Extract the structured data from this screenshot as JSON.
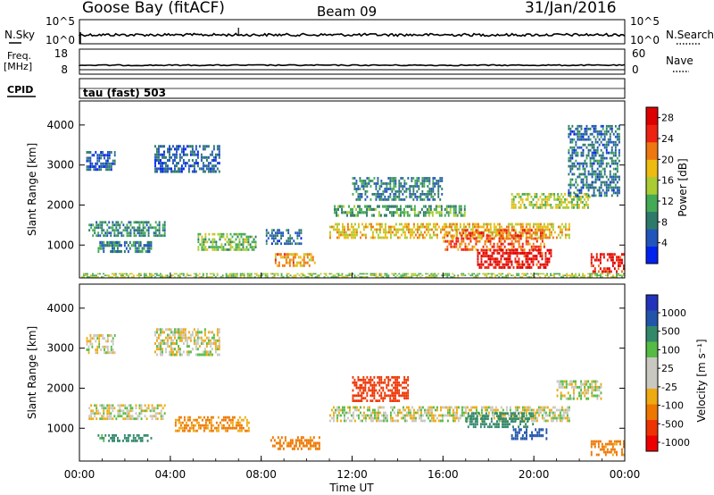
{
  "header": {
    "site": "Goose Bay (fitACF)",
    "beam": "Beam 09",
    "date": "31/Jan/2016"
  },
  "strips": {
    "nsky_label": "N.Sky",
    "nsearch_label": "N.Search",
    "nsky_ticks": [
      "10^5",
      "10^0"
    ],
    "nsearch_ticks": [
      "10^5",
      "10^0"
    ],
    "freq_label_1": "Freq.",
    "freq_label_2": "[MHz]",
    "freq_ticks": [
      "18",
      "8"
    ],
    "nave_label": "Nave",
    "nave_ticks": [
      "60",
      "0"
    ],
    "cpid_label": "CPID",
    "cpid_value": "tau (fast) 503"
  },
  "colors": {
    "power_scale": [
      "#0022ee",
      "#2255bb",
      "#2e7a6a",
      "#44aa55",
      "#aacc33",
      "#eebb11",
      "#ee7711",
      "#ee2211",
      "#dd0000"
    ],
    "velocity_scale": [
      "#ee0000",
      "#ee3300",
      "#ee7700",
      "#eeaa11",
      "#c8c8c0",
      "#c8c8c0",
      "#55bb44",
      "#33886a",
      "#2255aa",
      "#2233bb"
    ]
  },
  "chart_data": [
    {
      "type": "heatmap",
      "name": "power",
      "ylabel": "Slant Range [km]",
      "xlabel": "Time UT",
      "x_ticks": [
        "00:00",
        "04:00",
        "08:00",
        "12:00",
        "16:00",
        "20:00",
        "00:00"
      ],
      "xlim_hours": [
        0,
        24
      ],
      "ylim_km": [
        180,
        4600
      ],
      "y_ticks": [
        1000,
        2000,
        3000,
        4000
      ],
      "colorbar_label": "Power [dB]",
      "colorbar_ticks": [
        4,
        8,
        12,
        16,
        20,
        24,
        28
      ],
      "colorbar_range": [
        0,
        30
      ],
      "echo_regions": [
        {
          "t": [
            0.0,
            24.0
          ],
          "r": [
            180,
            300
          ],
          "level": 14
        },
        {
          "t": [
            0.3,
            1.6
          ],
          "r": [
            2850,
            3350
          ],
          "level": 6
        },
        {
          "t": [
            0.4,
            3.8
          ],
          "r": [
            1200,
            1600
          ],
          "level": 9
        },
        {
          "t": [
            0.8,
            3.2
          ],
          "r": [
            800,
            1100
          ],
          "level": 8
        },
        {
          "t": [
            3.3,
            6.2
          ],
          "r": [
            2800,
            3500
          ],
          "level": 6
        },
        {
          "t": [
            5.2,
            7.8
          ],
          "r": [
            850,
            1300
          ],
          "level": 13
        },
        {
          "t": [
            8.2,
            9.8
          ],
          "r": [
            1000,
            1400
          ],
          "level": 7
        },
        {
          "t": [
            8.6,
            10.4
          ],
          "r": [
            450,
            800
          ],
          "level": 20
        },
        {
          "t": [
            11.0,
            21.6
          ],
          "r": [
            1150,
            1550
          ],
          "level": 18
        },
        {
          "t": [
            11.2,
            17.0
          ],
          "r": [
            1700,
            2000
          ],
          "level": 11
        },
        {
          "t": [
            12.0,
            16.0
          ],
          "r": [
            2100,
            2700
          ],
          "level": 8
        },
        {
          "t": [
            16.0,
            20.5
          ],
          "r": [
            850,
            1400
          ],
          "level": 23
        },
        {
          "t": [
            17.5,
            20.8
          ],
          "r": [
            400,
            900
          ],
          "level": 27
        },
        {
          "t": [
            19.0,
            22.5
          ],
          "r": [
            1900,
            2300
          ],
          "level": 15
        },
        {
          "t": [
            21.5,
            23.8
          ],
          "r": [
            2200,
            4000
          ],
          "level": 7
        },
        {
          "t": [
            22.5,
            24.0
          ],
          "r": [
            300,
            800
          ],
          "level": 26
        }
      ]
    },
    {
      "type": "heatmap",
      "name": "velocity",
      "ylabel": "Slant Range [km]",
      "xlabel": "Time UT",
      "x_ticks": [
        "00:00",
        "04:00",
        "08:00",
        "12:00",
        "16:00",
        "20:00",
        "00:00"
      ],
      "xlim_hours": [
        0,
        24
      ],
      "ylim_km": [
        180,
        4600
      ],
      "y_ticks": [
        1000,
        2000,
        3000,
        4000
      ],
      "colorbar_label": "Velocity [m s⁻¹]",
      "colorbar_ticks": [
        "1000",
        "500",
        "100",
        "25",
        "-25",
        "-100",
        "-500",
        "-1000"
      ],
      "echo_regions": [
        {
          "t": [
            0.4,
            3.8
          ],
          "r": [
            1200,
            1600
          ],
          "v": 0
        },
        {
          "t": [
            0.3,
            1.6
          ],
          "r": [
            2850,
            3350
          ],
          "v": 0
        },
        {
          "t": [
            0.8,
            3.2
          ],
          "r": [
            650,
            850
          ],
          "v": 150
        },
        {
          "t": [
            3.3,
            6.2
          ],
          "r": [
            2800,
            3500
          ],
          "v": 0
        },
        {
          "t": [
            4.2,
            7.5
          ],
          "r": [
            900,
            1300
          ],
          "v": -120
        },
        {
          "t": [
            8.4,
            10.6
          ],
          "r": [
            450,
            800
          ],
          "v": -150
        },
        {
          "t": [
            11.0,
            21.6
          ],
          "r": [
            1150,
            1550
          ],
          "v": 0
        },
        {
          "t": [
            12.0,
            14.5
          ],
          "r": [
            1650,
            2300
          ],
          "v": -400
        },
        {
          "t": [
            17.0,
            20.0
          ],
          "r": [
            1000,
            1400
          ],
          "v": 300
        },
        {
          "t": [
            19.0,
            20.6
          ],
          "r": [
            700,
            1000
          ],
          "v": 700
        },
        {
          "t": [
            21.0,
            23.0
          ],
          "r": [
            1700,
            2200
          ],
          "v": 0
        },
        {
          "t": [
            22.5,
            24.0
          ],
          "r": [
            300,
            700
          ],
          "v": -150
        }
      ]
    }
  ]
}
